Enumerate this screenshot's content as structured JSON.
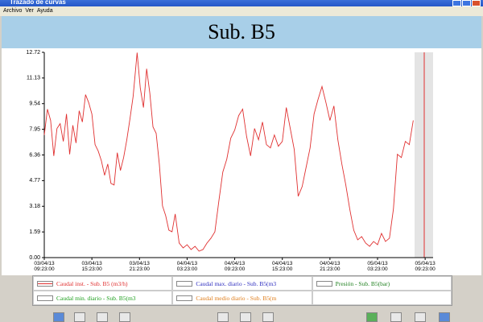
{
  "window": {
    "title": "Trazado de curvas",
    "menu": [
      "Archivo",
      "Ver",
      "Ayuda"
    ]
  },
  "chart_data": {
    "type": "line",
    "title": "Sub. B5",
    "x": [
      0,
      0.4,
      0.8,
      1.2,
      1.6,
      2,
      2.4,
      2.8,
      3.2,
      3.6,
      4,
      4.4,
      4.8,
      5.2,
      5.6,
      6,
      6.4,
      6.8,
      7.2,
      7.6,
      8,
      8.4,
      8.8,
      9.2,
      9.6,
      10,
      10.4,
      10.8,
      11.2,
      11.7,
      12.1,
      12.5,
      12.9,
      13.3,
      13.7,
      14.1,
      14.5,
      14.9,
      15.3,
      15.7,
      16.1,
      16.5,
      17,
      17.5,
      18,
      18.5,
      19,
      19.5,
      20,
      20.5,
      21,
      21.5,
      22,
      22.5,
      23,
      23.5,
      24,
      24.5,
      25,
      25.5,
      26,
      26.5,
      27,
      27.5,
      28,
      28.5,
      29,
      29.5,
      30,
      30.5,
      31,
      31.5,
      32,
      32.5,
      33,
      33.5,
      34,
      34.5,
      35,
      35.5,
      36,
      36.5,
      37,
      37.5,
      38,
      38.5,
      39,
      39.5,
      40,
      40.5,
      41,
      41.5,
      42,
      42.5,
      43,
      43.5,
      44,
      44.5,
      45,
      45.5,
      46,
      46.5
    ],
    "series": [
      {
        "name": "Caudal inst. - Sub. B5 (m3/h)",
        "color": "#e03030",
        "values": [
          7.6,
          9.2,
          8.5,
          6.3,
          8.0,
          8.3,
          7.2,
          8.9,
          6.4,
          8.2,
          7.1,
          9.1,
          8.4,
          10.1,
          9.6,
          8.9,
          7.0,
          6.6,
          6.0,
          5.1,
          5.8,
          4.6,
          4.5,
          6.5,
          5.4,
          6.2,
          7.3,
          8.6,
          10.0,
          12.7,
          10.5,
          9.3,
          11.7,
          10.2,
          8.1,
          7.7,
          5.8,
          3.2,
          2.6,
          1.7,
          1.6,
          2.7,
          0.9,
          0.6,
          0.8,
          0.5,
          0.7,
          0.4,
          0.5,
          0.9,
          1.2,
          1.6,
          3.5,
          5.3,
          6.1,
          7.4,
          7.9,
          8.8,
          9.2,
          7.5,
          6.3,
          8.0,
          7.3,
          8.4,
          7.0,
          6.8,
          7.6,
          6.9,
          7.2,
          9.3,
          8.0,
          6.7,
          3.8,
          4.4,
          5.6,
          6.8,
          8.9,
          9.8,
          10.6,
          9.6,
          8.5,
          9.4,
          7.3,
          5.8,
          4.5,
          3.0,
          1.7,
          1.1,
          1.3,
          0.9,
          0.7,
          1.0,
          0.8,
          1.5,
          1.0,
          1.2,
          3.0,
          6.4,
          6.2,
          7.2,
          7.0,
          8.5
        ]
      },
      {
        "name": "Caudal max. diario - Sub. B5(m3",
        "color": "#3030c0"
      },
      {
        "name": "Presión - Sub. B5(bar)",
        "color": "#208020"
      },
      {
        "name": "Caudal min. diario - Sub. B5(m3",
        "color": "#20a020"
      },
      {
        "name": "Caudal medio diario - Sub. B5(m",
        "color": "#e08020"
      }
    ],
    "xlim": [
      0,
      49
    ],
    "xticks": [
      {
        "value": 0,
        "label": "03/04/13 09:23:00"
      },
      {
        "value": 6,
        "label": "03/04/13 15:23:00"
      },
      {
        "value": 12,
        "label": "03/04/13 21:23:00"
      },
      {
        "value": 18,
        "label": "04/04/13 03:23:00"
      },
      {
        "value": 24,
        "label": "04/04/13 09:23:00"
      },
      {
        "value": 30,
        "label": "04/04/13 15:23:00"
      },
      {
        "value": 36,
        "label": "04/04/13 21:23:00"
      },
      {
        "value": 42,
        "label": "05/04/13 03:23:00"
      },
      {
        "value": 48,
        "label": "05/04/13 09:23:00"
      }
    ],
    "ylim": [
      0,
      12.72
    ],
    "yticks": [
      {
        "value": 0,
        "label": "0.00"
      },
      {
        "value": 1.59,
        "label": "1.59"
      },
      {
        "value": 3.18,
        "label": "3.18"
      },
      {
        "value": 4.77,
        "label": "4.77"
      },
      {
        "value": 6.36,
        "label": "6.36"
      },
      {
        "value": 7.95,
        "label": "7.95"
      },
      {
        "value": 9.54,
        "label": "9.54"
      },
      {
        "value": 11.13,
        "label": "11.13"
      },
      {
        "value": 12.72,
        "label": "12.72"
      }
    ]
  }
}
